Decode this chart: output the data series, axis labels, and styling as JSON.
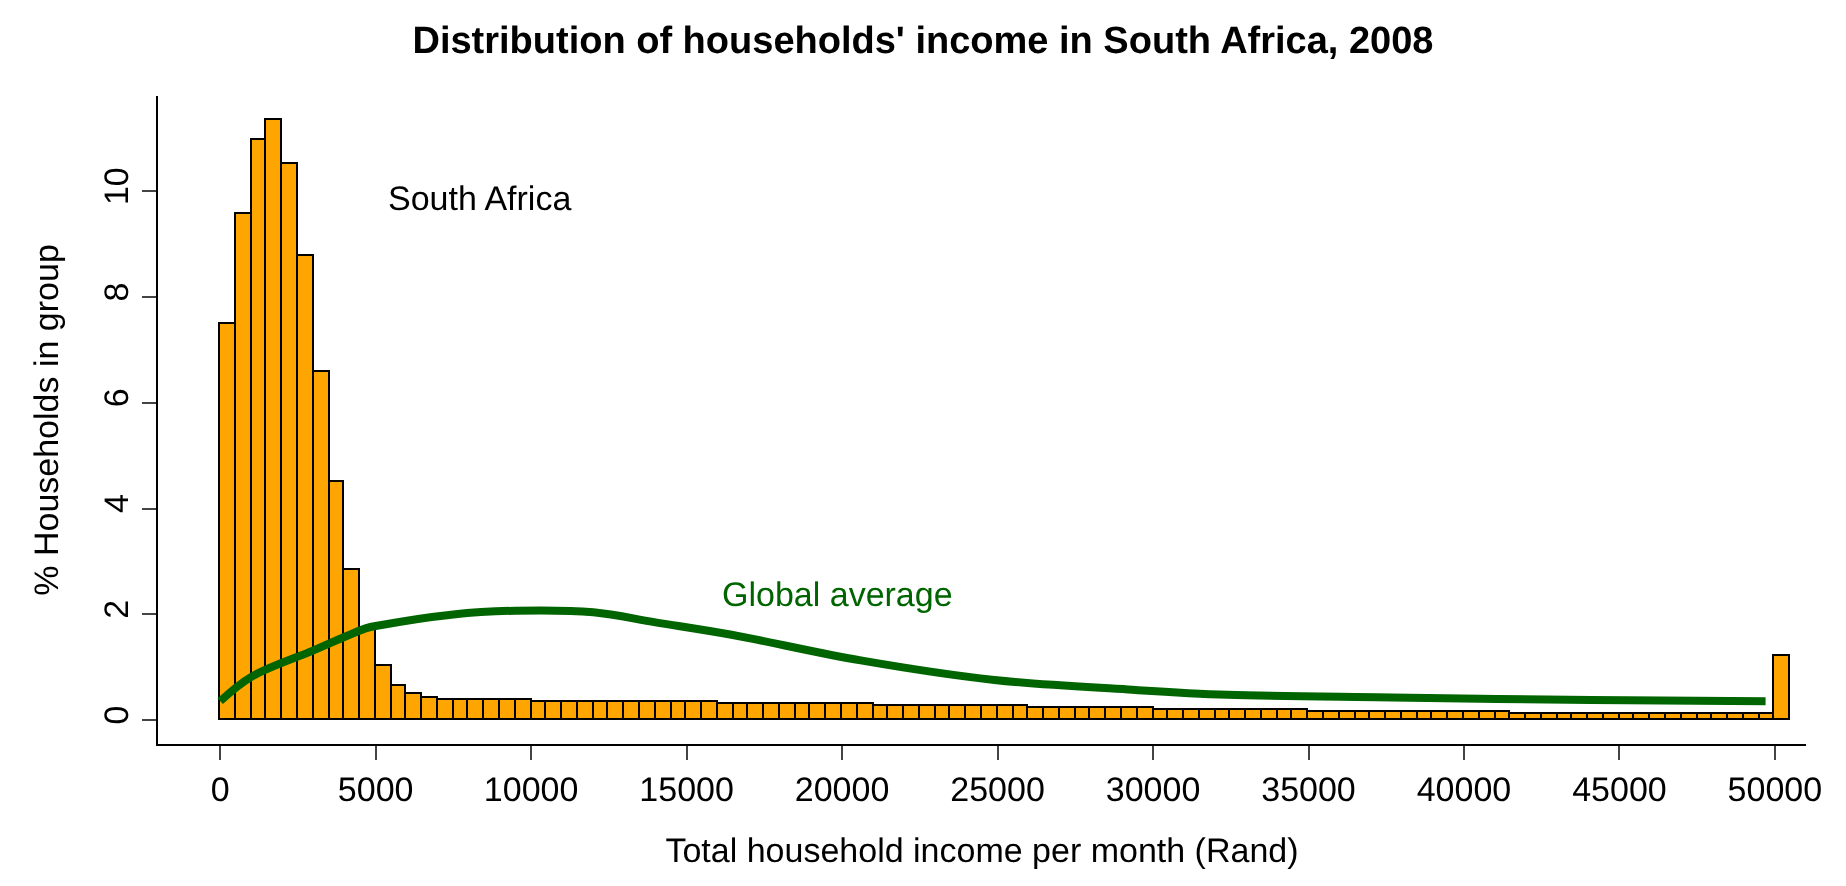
{
  "chart_data": {
    "type": "histogram",
    "title": "Distribution of households' income in South Africa, 2008",
    "xlabel": "Total household income per month (Rand)",
    "ylabel": "% Households in group",
    "series": [
      {
        "name": "South Africa",
        "color": "#ffa500",
        "bins": [
          0,
          500,
          1000,
          1500,
          2000,
          2500,
          3000,
          3500,
          4000,
          4500,
          5000,
          5500,
          6000,
          6500,
          7000,
          7500,
          8000,
          8500,
          9000,
          9500,
          10000,
          10500,
          11000,
          11500,
          12000,
          12500,
          13000,
          13500,
          14000,
          14500,
          15000,
          15500,
          16000,
          16500,
          17000,
          17500,
          18000,
          18500,
          19000,
          19500,
          20000,
          20500,
          21000,
          21500,
          22000,
          22500,
          23000,
          23500,
          24000,
          24500,
          25000,
          25500,
          26000,
          26500,
          27000,
          27500,
          28000,
          28500,
          29000,
          29500,
          30000,
          30500,
          31000,
          31500,
          32000,
          32500,
          33000,
          33500,
          34000,
          34500,
          35000,
          35500,
          36000,
          36500,
          37000,
          37500,
          38000,
          38500,
          39000,
          39500,
          40000,
          40500,
          41000,
          41500,
          42000,
          42500,
          43000,
          43500,
          44000,
          44500,
          45000,
          45500,
          46000,
          46500,
          47000,
          47500,
          48000,
          48500,
          49000,
          49500,
          50000,
          50500
        ],
        "values": [
          7.5,
          9.56,
          10.98,
          11.33,
          10.51,
          8.78,
          6.6,
          4.52,
          2.84,
          1.76,
          1.02,
          0.66,
          0.5,
          0.43,
          0.4,
          0.38,
          0.38,
          0.37,
          0.37,
          0.37,
          0.36,
          0.36,
          0.36,
          0.35,
          0.35,
          0.35,
          0.34,
          0.34,
          0.34,
          0.33,
          0.33,
          0.33,
          0.32,
          0.32,
          0.32,
          0.31,
          0.31,
          0.3,
          0.3,
          0.3,
          0.29,
          0.29,
          0.28,
          0.28,
          0.28,
          0.27,
          0.27,
          0.26,
          0.26,
          0.26,
          0.25,
          0.25,
          0.24,
          0.24,
          0.24,
          0.23,
          0.23,
          0.22,
          0.22,
          0.22,
          0.21,
          0.21,
          0.2,
          0.2,
          0.2,
          0.19,
          0.19,
          0.18,
          0.18,
          0.18,
          0.17,
          0.17,
          0.17,
          0.16,
          0.16,
          0.16,
          0.15,
          0.15,
          0.15,
          0.14,
          0.14,
          0.14,
          0.14,
          0.13,
          0.13,
          0.13,
          0.13,
          0.13,
          0.12,
          0.12,
          0.12,
          0.12,
          0.12,
          0.12,
          0.12,
          0.12,
          0.12,
          0.12,
          0.12,
          0.12,
          1.22
        ]
      },
      {
        "type": "line",
        "name": "Global average",
        "color": "#006400",
        "x": [
          0,
          1000,
          3000,
          4700,
          5000,
          7500,
          9500,
          12000,
          14000,
          16400,
          20600,
          24900,
          29200,
          32400,
          37700,
          44100,
          49700
        ],
        "values": [
          0.36,
          0.82,
          1.32,
          1.74,
          1.78,
          2.0,
          2.07,
          2.04,
          1.85,
          1.62,
          1.13,
          0.76,
          0.58,
          0.48,
          0.43,
          0.38,
          0.36
        ]
      }
    ],
    "xlim": [
      -2000,
      51000
    ],
    "ylim": [
      -0.45,
      11.8
    ],
    "xticks": [
      0,
      5000,
      10000,
      15000,
      20000,
      25000,
      30000,
      35000,
      40000,
      45000,
      50000
    ],
    "yticks": [
      0,
      2,
      4,
      6,
      8,
      10
    ]
  }
}
